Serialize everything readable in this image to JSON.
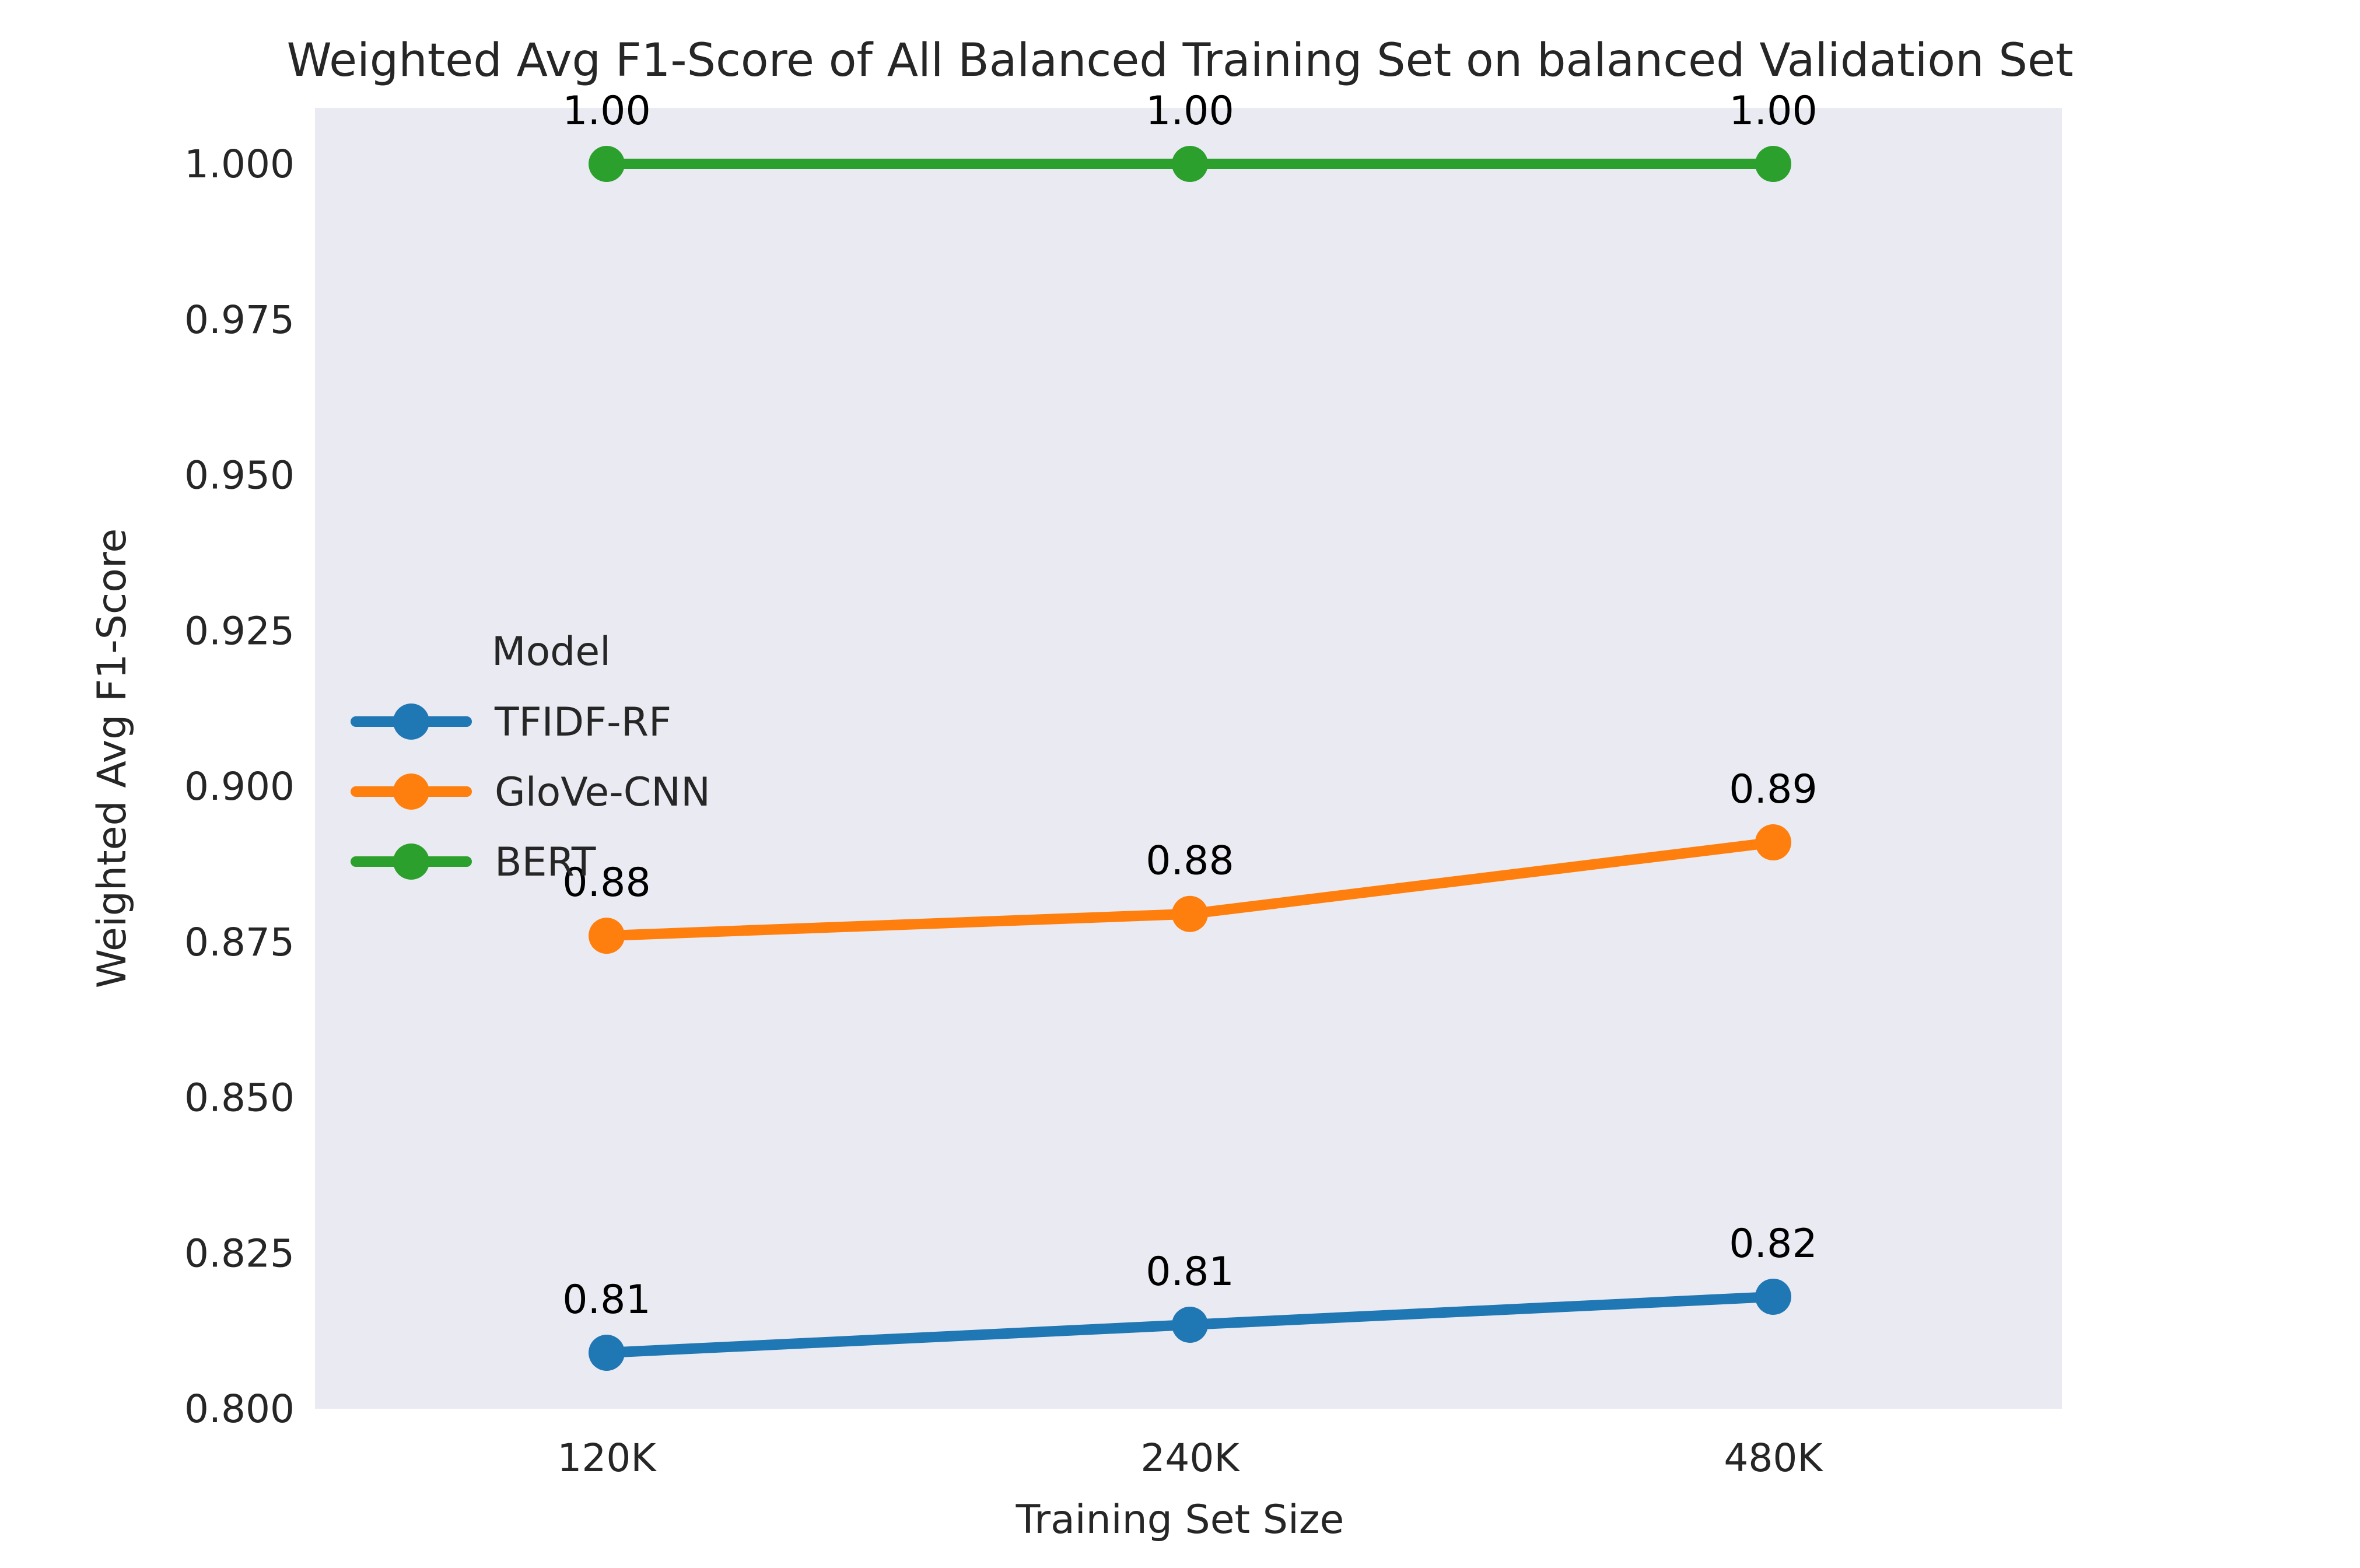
{
  "chart_data": {
    "type": "line",
    "title": "Weighted Avg F1-Score of All Balanced Training Set on balanced Validation Set",
    "xlabel": "Training Set Size",
    "ylabel": "Weighted Avg F1-Score",
    "categories": [
      "120K",
      "240K",
      "480K"
    ],
    "ylim": [
      0.8,
      1.009
    ],
    "yticks": [
      0.8,
      0.825,
      0.85,
      0.875,
      0.9,
      0.925,
      0.95,
      0.975,
      1.0
    ],
    "ytick_labels": [
      "0.800",
      "0.825",
      "0.850",
      "0.875",
      "0.900",
      "0.925",
      "0.950",
      "0.975",
      "1.000"
    ],
    "grid": false,
    "legend": {
      "title": "Model",
      "placement": "center-left"
    },
    "series": [
      {
        "name": "TFIDF-RF",
        "color": "#1f77b4",
        "values": [
          0.809,
          0.8135,
          0.818
        ],
        "labels": [
          "0.81",
          "0.81",
          "0.82"
        ]
      },
      {
        "name": "GloVe-CNN",
        "color": "#ff7f0e",
        "values": [
          0.876,
          0.8795,
          0.891
        ],
        "labels": [
          "0.88",
          "0.88",
          "0.89"
        ]
      },
      {
        "name": "BERT",
        "color": "#2ca02c",
        "values": [
          1.0,
          1.0,
          1.0
        ],
        "labels": [
          "1.00",
          "1.00",
          "1.00"
        ]
      }
    ]
  }
}
